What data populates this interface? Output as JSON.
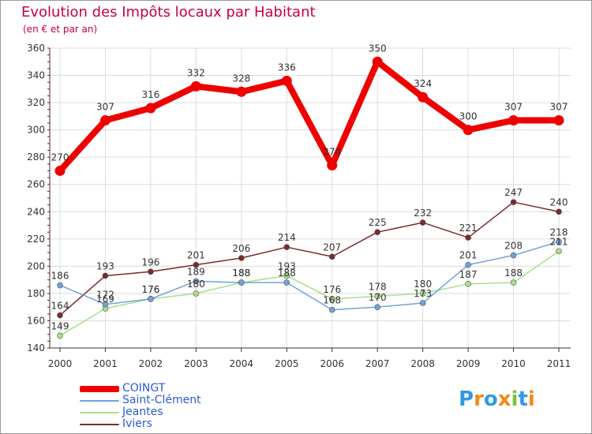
{
  "title": "Evolution des Impôts locaux par Habitant",
  "subtitle": "(en € et par an)",
  "logo_text": "Proxiti",
  "chart_data": {
    "type": "line",
    "title": "Evolution des Impôts locaux par Habitant",
    "ylabel": "(en € et par an)",
    "xlabel": "",
    "ylim": [
      140,
      360
    ],
    "yticks": [
      "140",
      "160",
      "180",
      "200",
      "220",
      "240",
      "260",
      "280",
      "300",
      "320",
      "340",
      "360"
    ],
    "categories": [
      "2000",
      "2001",
      "2002",
      "2003",
      "2004",
      "2005",
      "2006",
      "2007",
      "2008",
      "2009",
      "2010",
      "2011"
    ],
    "grid": true,
    "series": [
      {
        "name": "COINGT",
        "color": "#ee0000",
        "values": [
          270,
          307,
          316,
          332,
          328,
          336,
          274,
          350,
          324,
          300,
          307,
          307
        ],
        "labels": [
          "270",
          "307",
          "316",
          "332",
          "328",
          "336",
          "274",
          "350",
          "324",
          "300",
          "307",
          "307"
        ]
      },
      {
        "name": "Saint-Clément",
        "color": "#6fa3d8",
        "values": [
          186,
          172,
          176,
          189,
          188,
          188,
          168,
          170,
          173,
          201,
          208,
          218
        ],
        "labels": [
          "186",
          "172",
          "176",
          "189",
          "188",
          "188",
          "168",
          "170",
          "173",
          "201",
          "208",
          "218"
        ]
      },
      {
        "name": "Jeantes",
        "color": "#a8e08a",
        "values": [
          149,
          169,
          176,
          180,
          188,
          193,
          176,
          178,
          180,
          187,
          188,
          211
        ],
        "labels": [
          "149",
          "169",
          "176",
          "180",
          "188",
          "193",
          "176",
          "178",
          "180",
          "187",
          "188",
          "211"
        ]
      },
      {
        "name": "Iviers",
        "color": "#7a2a2a",
        "values": [
          164,
          193,
          196,
          201,
          206,
          214,
          207,
          225,
          232,
          221,
          247,
          240
        ],
        "labels": [
          "164",
          "193",
          "196",
          "201",
          "206",
          "214",
          "207",
          "225",
          "232",
          "221",
          "247",
          "240"
        ]
      }
    ]
  },
  "legend": [
    {
      "label": "COINGT",
      "color": "#ee0000"
    },
    {
      "label": "Saint-Clément",
      "color": "#6fa3d8"
    },
    {
      "label": "Jeantes",
      "color": "#a8e08a"
    },
    {
      "label": "Iviers",
      "color": "#7a2a2a"
    }
  ]
}
